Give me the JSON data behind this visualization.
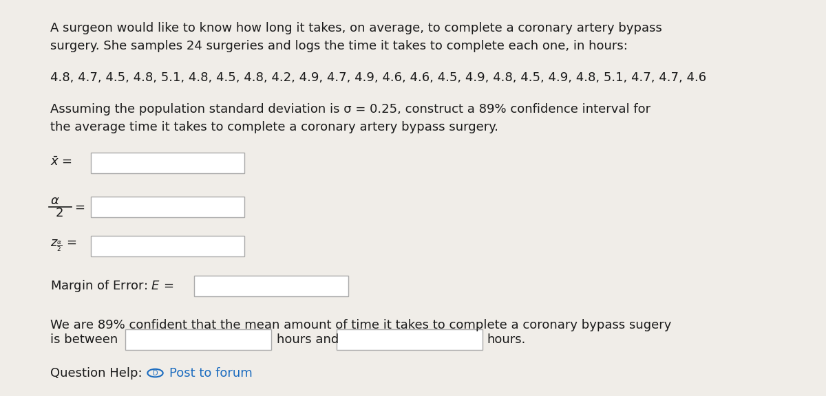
{
  "bg_color": "#f0ede8",
  "text_color": "#1a1a1a",
  "link_color": "#1a6bbf",
  "para1_line1": "A surgeon would like to know how long it takes, on average, to complete a coronary artery bypass",
  "para1_line2": "surgery. She samples 24 surgeries and logs the time it takes to complete each one, in hours:",
  "data_line": "4.8, 4.7, 4.5, 4.8, 5.1, 4.8, 4.5, 4.8, 4.2, 4.9, 4.7, 4.9, 4.6, 4.6, 4.5, 4.9, 4.8, 4.5, 4.9, 4.8, 5.1, 4.7, 4.7, 4.6",
  "para2_line1": "Assuming the population standard deviation is σ = 0.25, construct a 89% confidence interval for",
  "para2_line2": "the average time it takes to complete a coronary artery bypass surgery.",
  "conclusion_line1": "We are 89% confident that the mean amount of time it takes to complete a coronary bypass sugery",
  "conclusion_line2_pre": "is between",
  "conclusion_line2_mid": "hours and",
  "conclusion_line2_post": "hours.",
  "question_help": "Question Help:",
  "post_link": "Post to forum",
  "font_size_main": 13,
  "box_color": "#ffffff",
  "box_edge_color": "#aaaaaa"
}
